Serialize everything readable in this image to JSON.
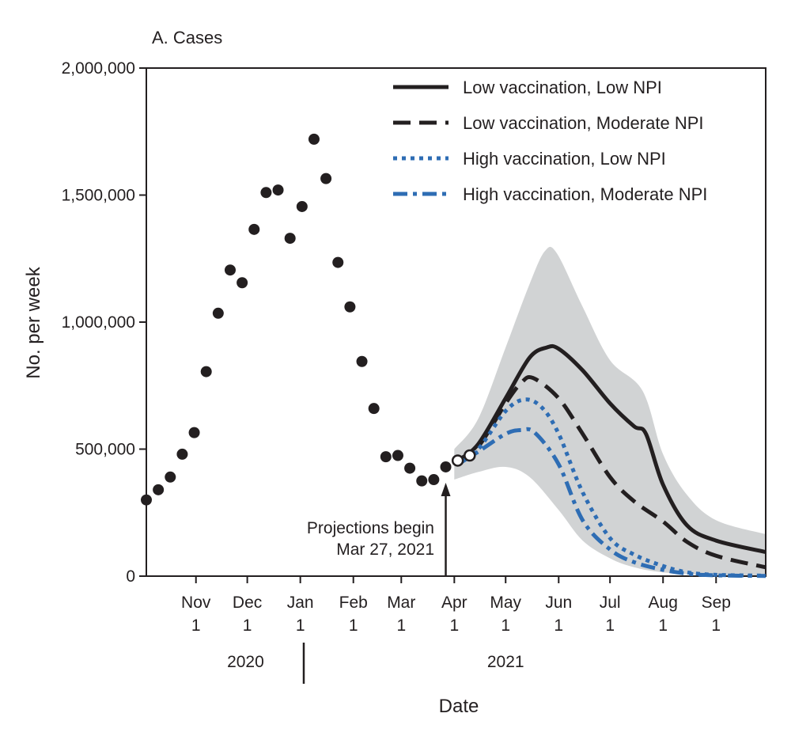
{
  "chart_data": {
    "type": "line",
    "panel_label": "A.  Cases",
    "xlabel": "Date",
    "ylabel": "No. per week",
    "ylim": [
      0,
      2000000
    ],
    "xlim_days_note": "",
    "y_ticks": [
      {
        "value": 0,
        "label": "0"
      },
      {
        "value": 500000,
        "label": "500,000"
      },
      {
        "value": 1000000,
        "label": "1,000,000"
      },
      {
        "value": 1500000,
        "label": "1,500,000"
      },
      {
        "value": 2000000,
        "label": "2,000,000"
      }
    ],
    "x_ticks": [
      {
        "date": "2020-11-01",
        "month": "Nov",
        "day": "1"
      },
      {
        "date": "2020-12-01",
        "month": "Dec",
        "day": "1"
      },
      {
        "date": "2021-01-01",
        "month": "Jan",
        "day": "1"
      },
      {
        "date": "2021-02-01",
        "month": "Feb",
        "day": "1"
      },
      {
        "date": "2021-03-01",
        "month": "Mar",
        "day": "1"
      },
      {
        "date": "2021-04-01",
        "month": "Apr",
        "day": "1"
      },
      {
        "date": "2021-05-01",
        "month": "May",
        "day": "1"
      },
      {
        "date": "2021-06-01",
        "month": "Jun",
        "day": "1"
      },
      {
        "date": "2021-07-01",
        "month": "Jul",
        "day": "1"
      },
      {
        "date": "2021-08-01",
        "month": "Aug",
        "day": "1"
      },
      {
        "date": "2021-09-01",
        "month": "Sep",
        "day": "1"
      }
    ],
    "x_start": "2020-10-03",
    "x_end": "2021-09-30",
    "year_labels": [
      {
        "label": "2020",
        "center": "2020-11-30"
      },
      {
        "label": "2021",
        "center": "2021-05-01"
      }
    ],
    "year_divider": "2021-01-03",
    "annotation": {
      "lines": [
        "Projections begin",
        "Mar 27, 2021"
      ],
      "date": "2021-03-27"
    },
    "observed": [
      {
        "x": "2020-10-03",
        "y": 300000
      },
      {
        "x": "2020-10-10",
        "y": 340000
      },
      {
        "x": "2020-10-17",
        "y": 390000
      },
      {
        "x": "2020-10-24",
        "y": 480000
      },
      {
        "x": "2020-10-31",
        "y": 565000
      },
      {
        "x": "2020-11-07",
        "y": 805000
      },
      {
        "x": "2020-11-14",
        "y": 1035000
      },
      {
        "x": "2020-11-21",
        "y": 1205000
      },
      {
        "x": "2020-11-28",
        "y": 1155000
      },
      {
        "x": "2020-12-05",
        "y": 1365000
      },
      {
        "x": "2020-12-12",
        "y": 1510000
      },
      {
        "x": "2020-12-19",
        "y": 1520000
      },
      {
        "x": "2020-12-26",
        "y": 1330000
      },
      {
        "x": "2021-01-02",
        "y": 1455000
      },
      {
        "x": "2021-01-09",
        "y": 1720000
      },
      {
        "x": "2021-01-16",
        "y": 1565000
      },
      {
        "x": "2021-01-23",
        "y": 1235000
      },
      {
        "x": "2021-01-30",
        "y": 1060000
      },
      {
        "x": "2021-02-06",
        "y": 845000
      },
      {
        "x": "2021-02-13",
        "y": 660000
      },
      {
        "x": "2021-02-20",
        "y": 470000
      },
      {
        "x": "2021-02-27",
        "y": 475000
      },
      {
        "x": "2021-03-06",
        "y": 425000
      },
      {
        "x": "2021-03-13",
        "y": 375000
      },
      {
        "x": "2021-03-20",
        "y": 380000
      },
      {
        "x": "2021-03-27",
        "y": 430000
      }
    ],
    "observed_open": [
      {
        "x": "2021-04-03",
        "y": 455000
      },
      {
        "x": "2021-04-10",
        "y": 475000
      }
    ],
    "band": {
      "upper": [
        {
          "x": "2021-04-01",
          "y": 500000
        },
        {
          "x": "2021-04-15",
          "y": 620000
        },
        {
          "x": "2021-05-01",
          "y": 900000
        },
        {
          "x": "2021-05-15",
          "y": 1150000
        },
        {
          "x": "2021-05-24",
          "y": 1280000
        },
        {
          "x": "2021-05-31",
          "y": 1270000
        },
        {
          "x": "2021-06-15",
          "y": 1060000
        },
        {
          "x": "2021-07-01",
          "y": 850000
        },
        {
          "x": "2021-07-20",
          "y": 730000
        },
        {
          "x": "2021-08-01",
          "y": 480000
        },
        {
          "x": "2021-08-15",
          "y": 320000
        },
        {
          "x": "2021-09-01",
          "y": 220000
        },
        {
          "x": "2021-09-30",
          "y": 165000
        }
      ],
      "lower": [
        {
          "x": "2021-04-01",
          "y": 380000
        },
        {
          "x": "2021-04-15",
          "y": 410000
        },
        {
          "x": "2021-05-01",
          "y": 430000
        },
        {
          "x": "2021-05-15",
          "y": 390000
        },
        {
          "x": "2021-06-01",
          "y": 260000
        },
        {
          "x": "2021-06-15",
          "y": 140000
        },
        {
          "x": "2021-07-01",
          "y": 70000
        },
        {
          "x": "2021-07-15",
          "y": 35000
        },
        {
          "x": "2021-08-01",
          "y": 15000
        },
        {
          "x": "2021-09-01",
          "y": 3000
        },
        {
          "x": "2021-09-30",
          "y": 0
        }
      ]
    },
    "series": [
      {
        "name": "Low vaccination, Low NPI",
        "color": "#231f20",
        "dash": "solid",
        "points": [
          {
            "x": "2021-04-03",
            "y": 455000
          },
          {
            "x": "2021-04-15",
            "y": 520000
          },
          {
            "x": "2021-05-01",
            "y": 700000
          },
          {
            "x": "2021-05-15",
            "y": 860000
          },
          {
            "x": "2021-05-25",
            "y": 900000
          },
          {
            "x": "2021-06-01",
            "y": 895000
          },
          {
            "x": "2021-06-15",
            "y": 810000
          },
          {
            "x": "2021-07-01",
            "y": 680000
          },
          {
            "x": "2021-07-15",
            "y": 590000
          },
          {
            "x": "2021-07-22",
            "y": 560000
          },
          {
            "x": "2021-08-01",
            "y": 360000
          },
          {
            "x": "2021-08-15",
            "y": 200000
          },
          {
            "x": "2021-09-01",
            "y": 140000
          },
          {
            "x": "2021-09-30",
            "y": 95000
          }
        ]
      },
      {
        "name": "Low vaccination, Moderate NPI",
        "color": "#231f20",
        "dash": "dashed",
        "points": [
          {
            "x": "2021-04-03",
            "y": 455000
          },
          {
            "x": "2021-04-15",
            "y": 510000
          },
          {
            "x": "2021-05-01",
            "y": 680000
          },
          {
            "x": "2021-05-10",
            "y": 760000
          },
          {
            "x": "2021-05-17",
            "y": 780000
          },
          {
            "x": "2021-06-01",
            "y": 700000
          },
          {
            "x": "2021-06-15",
            "y": 560000
          },
          {
            "x": "2021-07-01",
            "y": 390000
          },
          {
            "x": "2021-07-15",
            "y": 295000
          },
          {
            "x": "2021-08-01",
            "y": 215000
          },
          {
            "x": "2021-08-15",
            "y": 135000
          },
          {
            "x": "2021-09-01",
            "y": 80000
          },
          {
            "x": "2021-09-30",
            "y": 35000
          }
        ]
      },
      {
        "name": "High vaccination, Low NPI",
        "color": "#2e6db4",
        "dash": "dotted",
        "points": [
          {
            "x": "2021-04-03",
            "y": 445000
          },
          {
            "x": "2021-04-15",
            "y": 500000
          },
          {
            "x": "2021-05-01",
            "y": 650000
          },
          {
            "x": "2021-05-12",
            "y": 695000
          },
          {
            "x": "2021-05-22",
            "y": 665000
          },
          {
            "x": "2021-06-01",
            "y": 560000
          },
          {
            "x": "2021-06-15",
            "y": 330000
          },
          {
            "x": "2021-07-01",
            "y": 150000
          },
          {
            "x": "2021-07-15",
            "y": 85000
          },
          {
            "x": "2021-08-01",
            "y": 40000
          },
          {
            "x": "2021-08-15",
            "y": 15000
          },
          {
            "x": "2021-09-01",
            "y": 5000
          },
          {
            "x": "2021-09-30",
            "y": 2000
          }
        ]
      },
      {
        "name": "High vaccination, Moderate NPI",
        "color": "#2e6db4",
        "dash": "dashdot",
        "points": [
          {
            "x": "2021-04-03",
            "y": 440000
          },
          {
            "x": "2021-04-15",
            "y": 490000
          },
          {
            "x": "2021-05-01",
            "y": 560000
          },
          {
            "x": "2021-05-10",
            "y": 575000
          },
          {
            "x": "2021-05-18",
            "y": 565000
          },
          {
            "x": "2021-06-01",
            "y": 440000
          },
          {
            "x": "2021-06-15",
            "y": 220000
          },
          {
            "x": "2021-07-01",
            "y": 105000
          },
          {
            "x": "2021-07-15",
            "y": 55000
          },
          {
            "x": "2021-08-01",
            "y": 25000
          },
          {
            "x": "2021-08-15",
            "y": 10000
          },
          {
            "x": "2021-09-01",
            "y": 3000
          },
          {
            "x": "2021-09-30",
            "y": 1000
          }
        ]
      }
    ],
    "legend": {
      "position": "top-right",
      "items": [
        {
          "label": "Low vaccination, Low NPI",
          "color": "#231f20",
          "dash": "solid"
        },
        {
          "label": "Low vaccination, Moderate NPI",
          "color": "#231f20",
          "dash": "dashed"
        },
        {
          "label": "High vaccination, Low NPI",
          "color": "#2e6db4",
          "dash": "dotted"
        },
        {
          "label": "High vaccination, Moderate NPI",
          "color": "#2e6db4",
          "dash": "dashdot"
        }
      ]
    },
    "colors": {
      "band": "#d1d3d4",
      "ink": "#231f20",
      "blue": "#2e6db4"
    }
  }
}
